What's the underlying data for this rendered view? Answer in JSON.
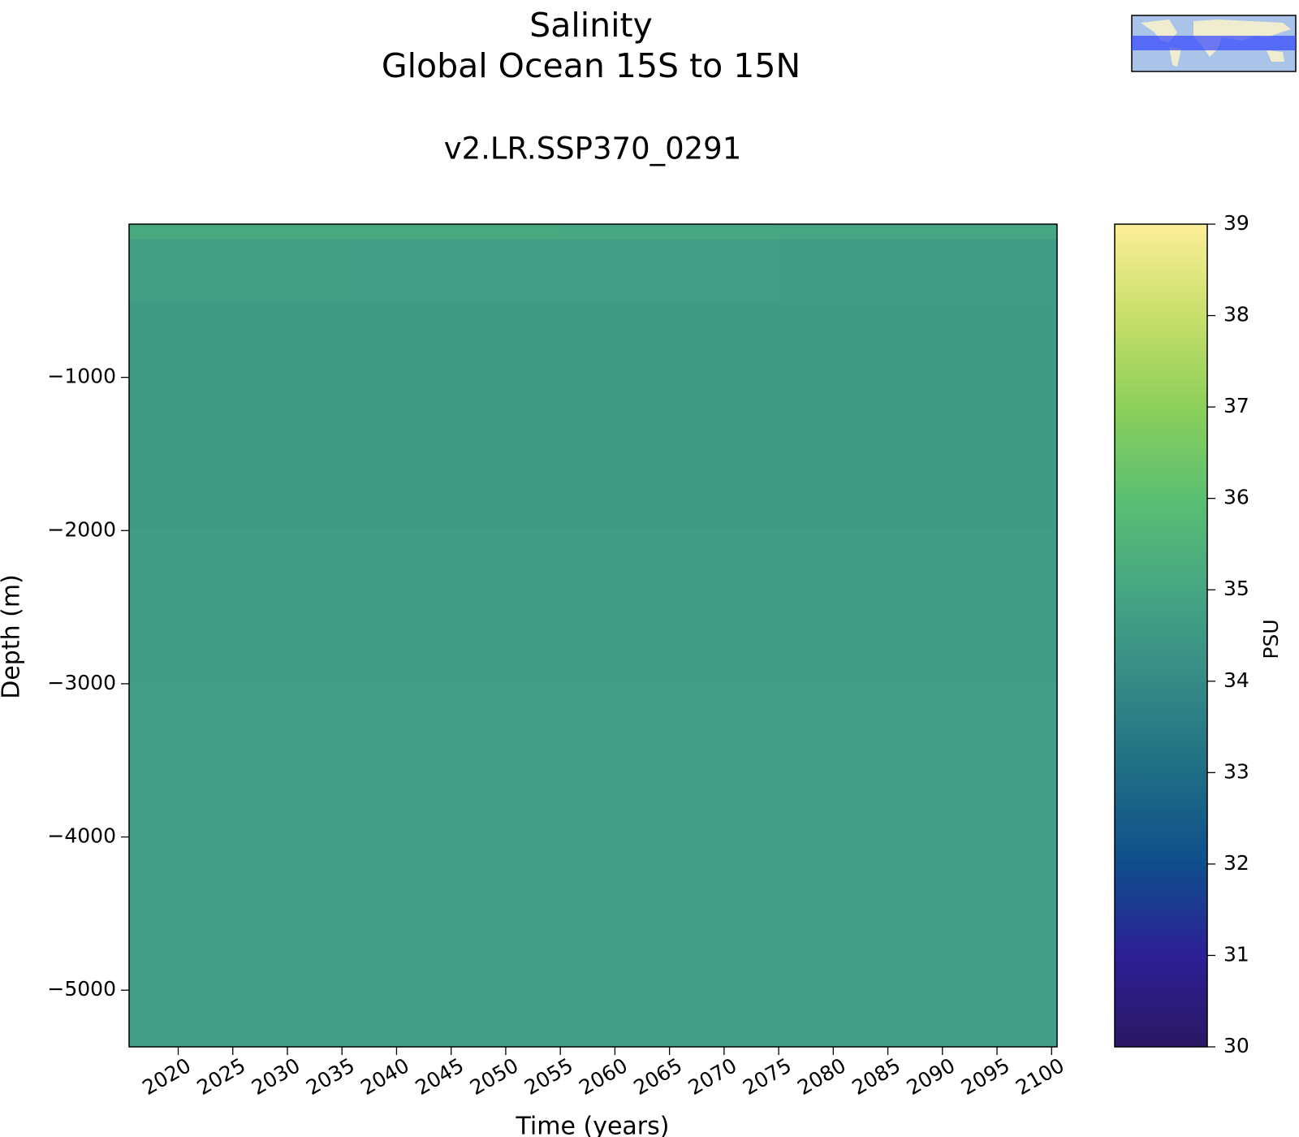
{
  "chart_data": {
    "type": "heatmap",
    "title": [
      "Salinity",
      "Global Ocean 15S to 15N"
    ],
    "subtitle": "v2.LR.SSP370_0291",
    "x_label": "Time (years)",
    "y_label": "Depth (m)",
    "colorbar_label": "PSU",
    "x_edges": [
      2015.5,
      2035,
      2055,
      2075,
      2100.5
    ],
    "y_edges": [
      0,
      -100,
      -500,
      -1000,
      -2000,
      -3000,
      -4000,
      -5370
    ],
    "z": [
      [
        35.1,
        35.1,
        35.05,
        35.0
      ],
      [
        34.75,
        34.7,
        34.7,
        34.65
      ],
      [
        34.6,
        34.6,
        34.6,
        34.6
      ],
      [
        34.6,
        34.6,
        34.6,
        34.62
      ],
      [
        34.68,
        34.68,
        34.68,
        34.68
      ],
      [
        34.7,
        34.7,
        34.7,
        34.7
      ],
      [
        34.72,
        34.72,
        34.72,
        34.72
      ]
    ],
    "xlim": [
      2015.5,
      2100.5
    ],
    "xticks": [
      2020,
      2025,
      2030,
      2035,
      2040,
      2045,
      2050,
      2055,
      2060,
      2065,
      2070,
      2075,
      2080,
      2085,
      2090,
      2095,
      2100
    ],
    "ylim": [
      -5370,
      0
    ],
    "yticks": [
      {
        "value": -1000,
        "label": "−1000"
      },
      {
        "value": -2000,
        "label": "−2000"
      },
      {
        "value": -3000,
        "label": "−3000"
      },
      {
        "value": -4000,
        "label": "−4000"
      },
      {
        "value": -5000,
        "label": "−5000"
      }
    ],
    "zlim": [
      30,
      39
    ],
    "zticks": [
      30,
      31,
      32,
      33,
      34,
      35,
      36,
      37,
      38,
      39
    ],
    "colorscale": [
      "#2a1863",
      "#2d1f96",
      "#0f4e8c",
      "#1f6d85",
      "#378a86",
      "#46a683",
      "#5bbf72",
      "#8ccf5a",
      "#c8df6a",
      "#fdee99"
    ]
  }
}
